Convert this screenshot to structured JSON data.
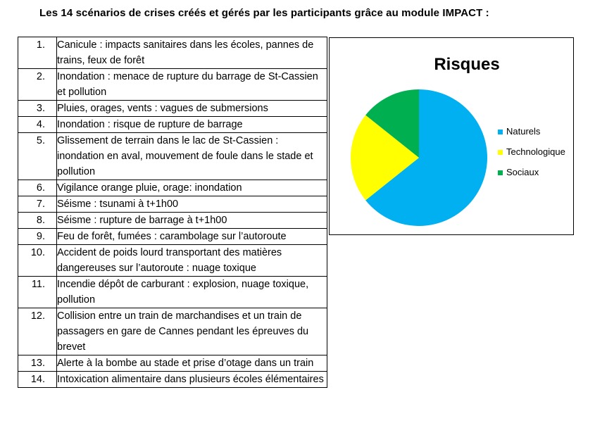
{
  "heading": "Les 14 scénarios de crises créés et gérés par les participants grâce au module IMPACT :",
  "scenarios": [
    {
      "num": "1.",
      "text": "Canicule : impacts sanitaires dans les écoles, pannes de trains, feux de forêt"
    },
    {
      "num": "2.",
      "text": "Inondation : menace de rupture du barrage de St-Cassien et pollution"
    },
    {
      "num": "3.",
      "text": "Pluies, orages, vents : vagues de submersions"
    },
    {
      "num": "4.",
      "text": "Inondation : risque de rupture de barrage"
    },
    {
      "num": "5.",
      "text": "Glissement de terrain dans le lac de St-Cassien : inondation en aval, mouvement de foule dans le stade et pollution"
    },
    {
      "num": "6.",
      "text": "Vigilance orange pluie, orage: inondation"
    },
    {
      "num": "7.",
      "text": "Séisme : tsunami à t+1h00"
    },
    {
      "num": "8.",
      "text": "Séisme : rupture de barrage à t+1h00"
    },
    {
      "num": "9.",
      "text": "Feu de forêt, fumées : carambolage sur l’autoroute"
    },
    {
      "num": "10.",
      "text": "Accident de poids lourd transportant des matières dangereuses sur l’autoroute : nuage toxique"
    },
    {
      "num": "11.",
      "text": "Incendie dépôt de carburant : explosion, nuage toxique, pollution"
    },
    {
      "num": "12.",
      "text": "Collision entre un train de marchandises et un train de passagers en gare de Cannes pendant les épreuves du brevet"
    },
    {
      "num": "13.",
      "text": "Alerte à la bombe au stade et prise d’otage dans un train"
    },
    {
      "num": "14.",
      "text": "Intoxication alimentaire dans plusieurs écoles élémentaires"
    }
  ],
  "chart_data": {
    "type": "pie",
    "title": "Risques",
    "categories": [
      "Naturels",
      "Technologique",
      "Sociaux"
    ],
    "values": [
      9,
      3,
      2
    ],
    "colors": [
      "#00B0F0",
      "#FFFF00",
      "#00B050"
    ],
    "legend_position": "right"
  }
}
